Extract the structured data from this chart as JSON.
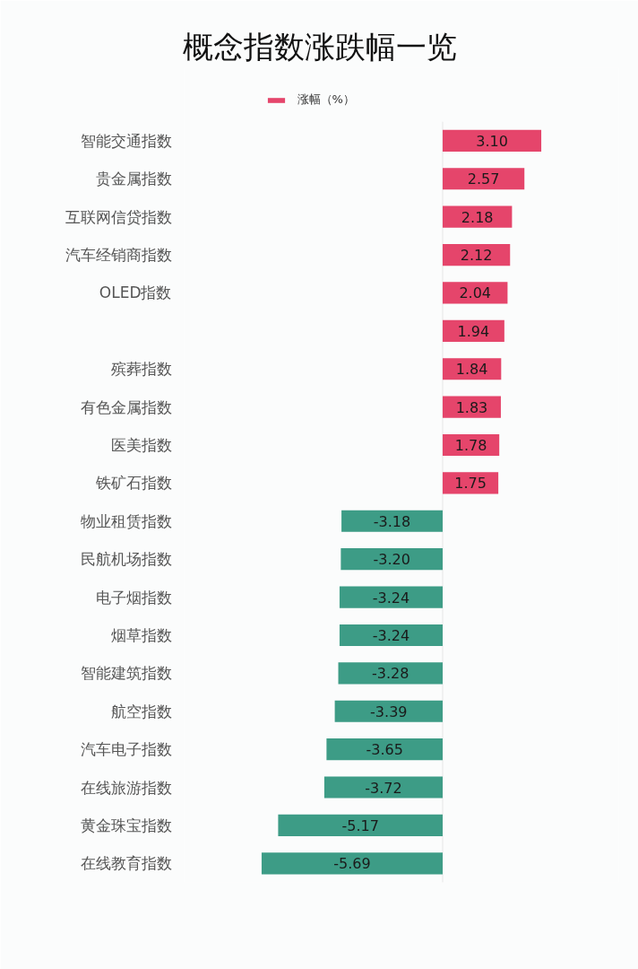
{
  "chart_data": {
    "type": "bar",
    "orientation": "horizontal",
    "title": "概念指数涨跌幅一览",
    "categories": [
      "智能交通指数",
      "贵金属指数",
      "互联网信贷指数",
      "汽车经销商指数",
      "OLED指数",
      null,
      "殡葬指数",
      "有色金属指数",
      "医美指数",
      "铁矿石指数",
      "物业租赁指数",
      "民航机场指数",
      "电子烟指数",
      "烟草指数",
      "智能建筑指数",
      "航空指数",
      "汽车电子指数",
      "在线旅游指数",
      "黄金珠宝指数",
      "在线教育指数"
    ],
    "series": [
      {
        "name": "涨幅（%）",
        "colors": [
          "#e5456b",
          "#e5456b",
          "#e5456b",
          "#e5456b",
          "#e5456b",
          "#e5456b",
          "#e5456b",
          "#e5456b",
          "#e5456b",
          "#e5456b",
          "#3d9c86",
          "#3d9c86",
          "#3d9c86",
          "#3d9c86",
          "#3d9c86",
          "#3d9c86",
          "#3d9c86",
          "#3d9c86",
          "#3d9c86",
          "#3d9c86"
        ],
        "values": [
          3.1,
          2.57,
          2.18,
          2.12,
          2.04,
          1.94,
          1.84,
          1.83,
          1.78,
          1.75,
          -3.18,
          -3.2,
          -3.24,
          -3.24,
          -3.28,
          -3.39,
          -3.65,
          -3.72,
          -5.17,
          -5.69
        ],
        "value_labels": [
          "3.10",
          "2.57",
          "2.18",
          "2.12",
          "2.04",
          "1.94",
          "1.84",
          "1.83",
          "1.78",
          "1.75",
          "-3.18",
          "-3.20",
          "-3.24",
          "-3.24",
          "-3.28",
          "-3.39",
          "-3.65",
          "-3.72",
          "-5.17",
          "-5.69"
        ]
      }
    ],
    "ref_lines": [
      {
        "axis": "x",
        "value": 0,
        "color": "#e6e6e6"
      }
    ],
    "legend": "top",
    "tick_labels": "y"
  }
}
